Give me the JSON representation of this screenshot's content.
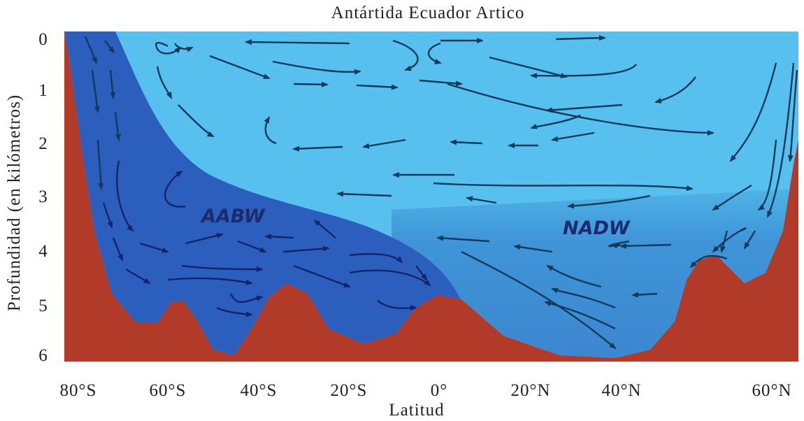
{
  "title": "Antártida Ecuador Artico",
  "y_axis": {
    "label": "Profundidad (en kilómetros)",
    "ticks": [
      "0",
      "1",
      "2",
      "3",
      "4",
      "5",
      "6"
    ]
  },
  "x_axis": {
    "label": "Latitud",
    "ticks": [
      "80°S",
      "60°S",
      "40°S",
      "20°S",
      "0°",
      "20°N",
      "40°N",
      "60°N"
    ]
  },
  "water_masses": [
    "AABW",
    "NADW"
  ]
}
